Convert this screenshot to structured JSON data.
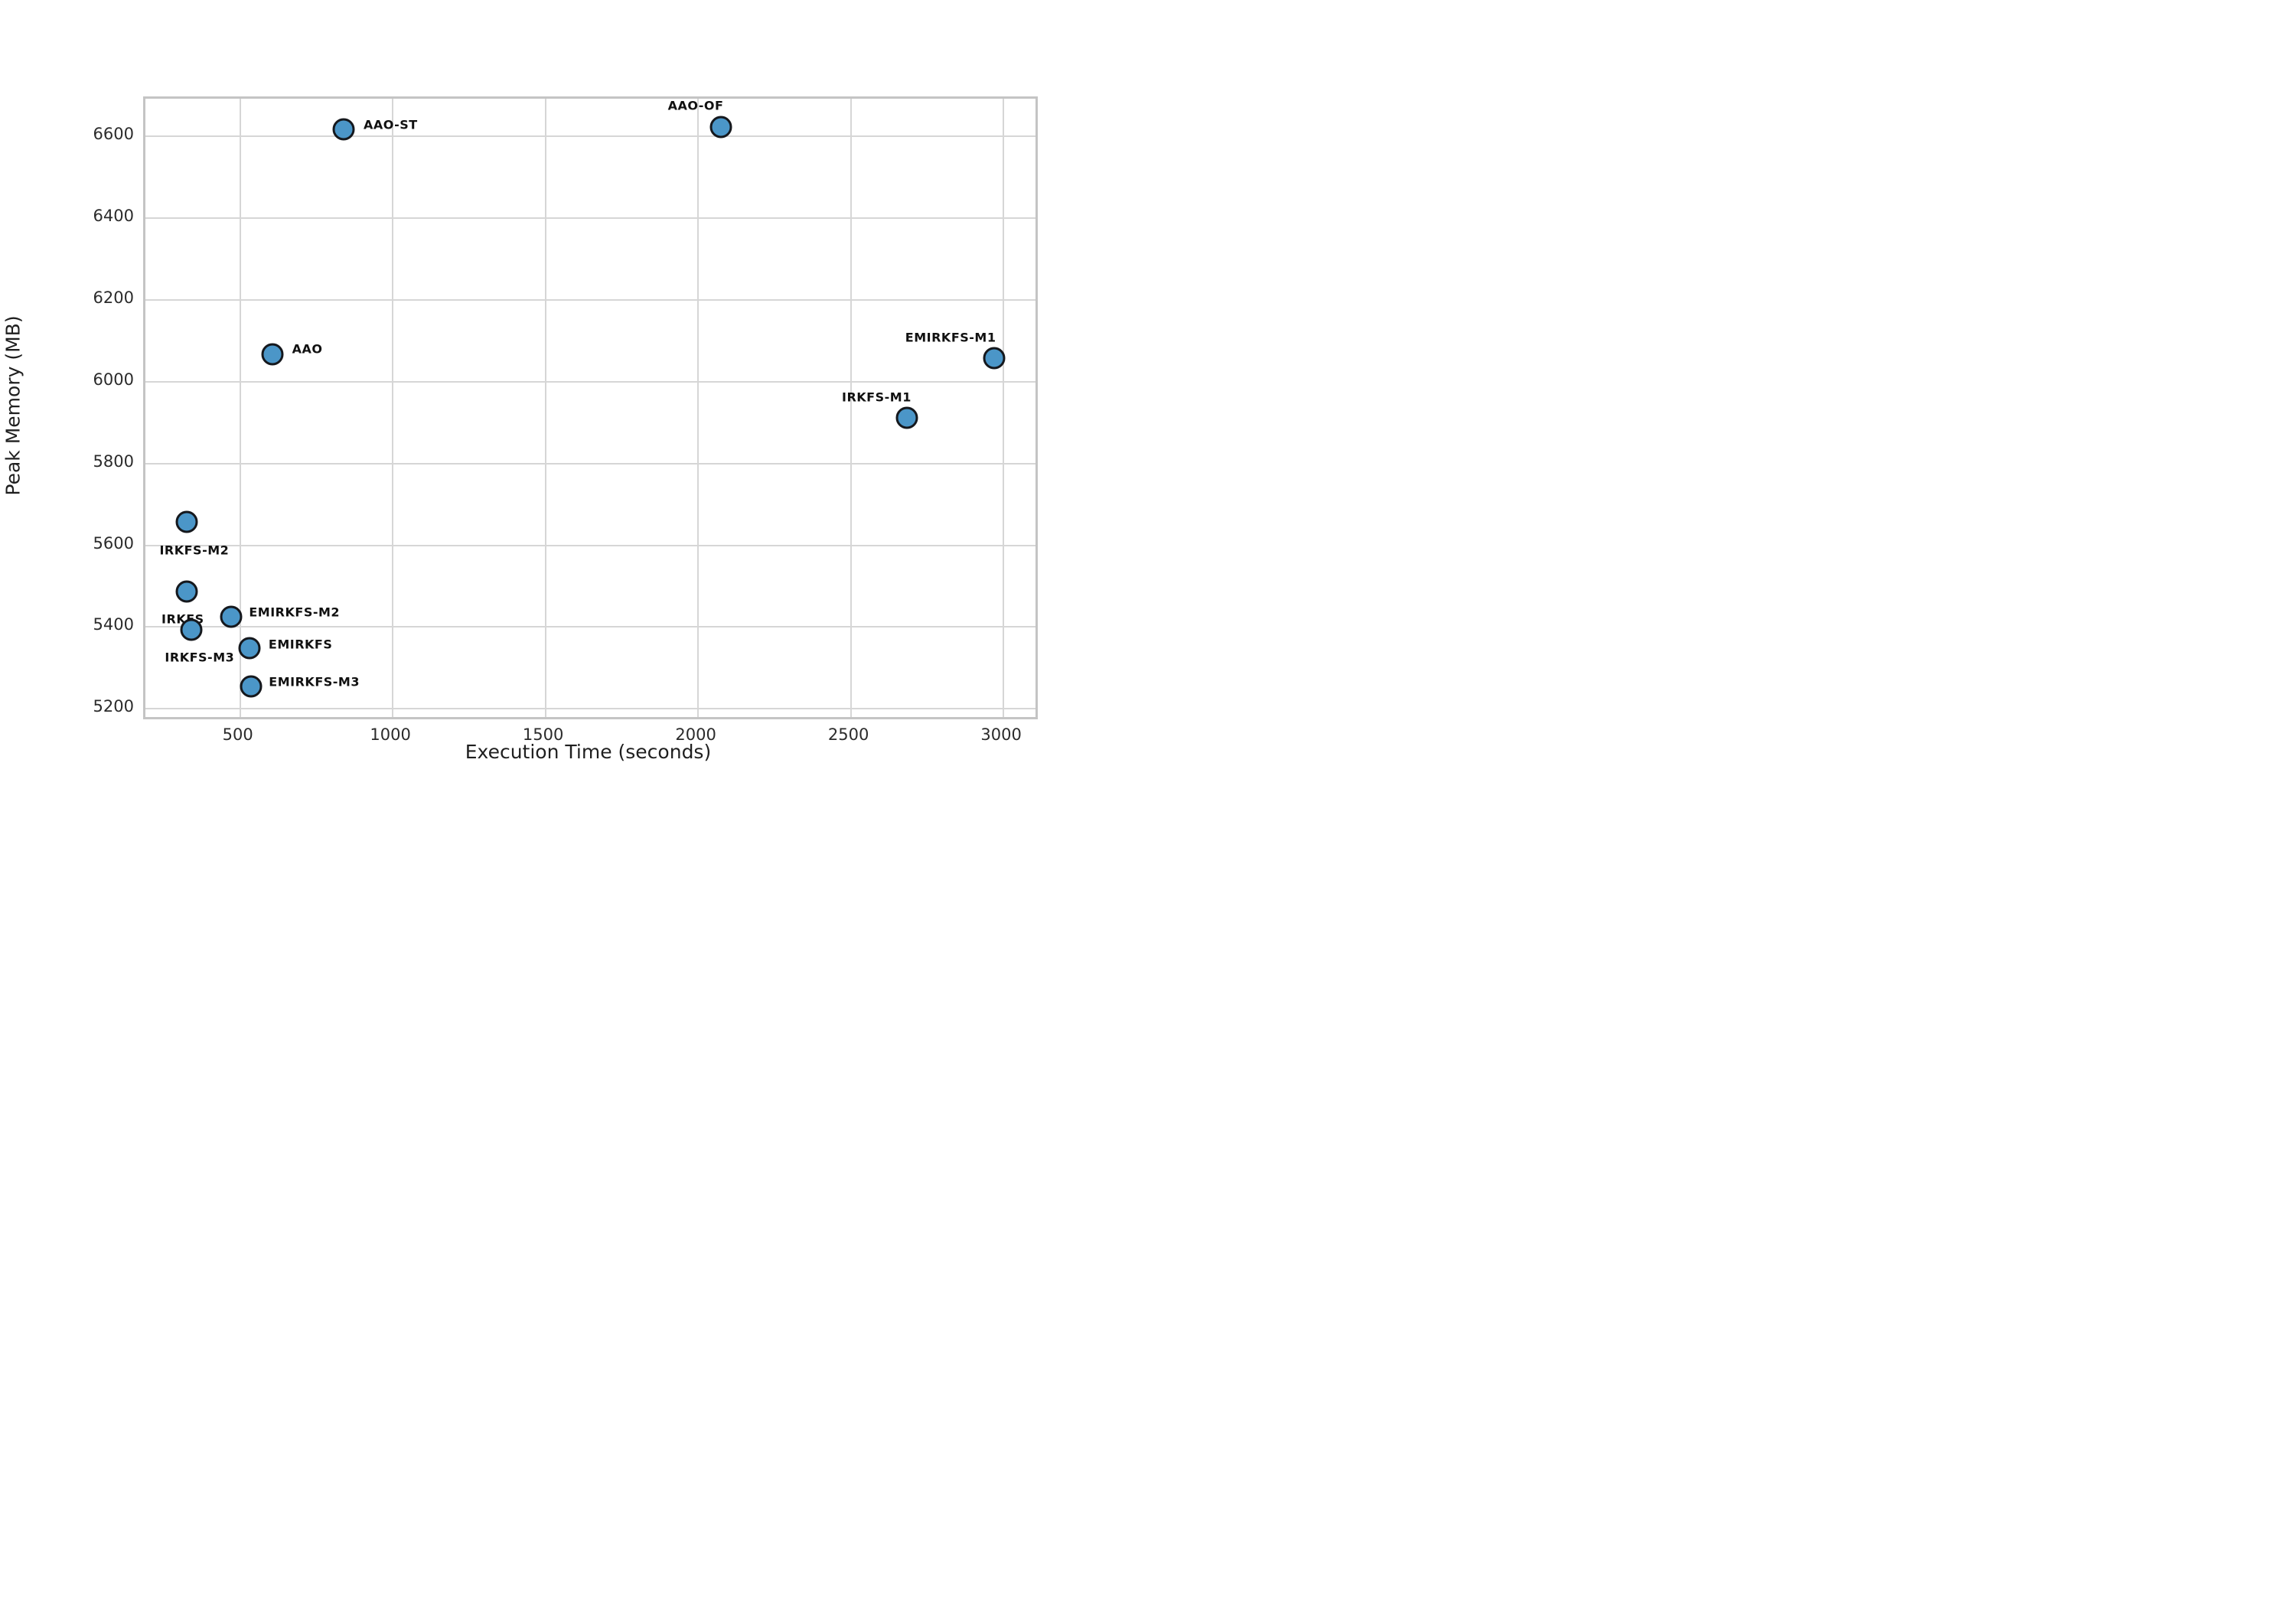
{
  "figure": {
    "xlabel": "Execution Time (seconds)",
    "ylabel": "Peak Memory (MB)"
  },
  "chart_data": {
    "type": "scatter",
    "title": "",
    "xlabel": "Execution Time (seconds)",
    "ylabel": "Peak Memory (MB)",
    "xlim": [
      190,
      3105
    ],
    "ylim": [
      5180,
      6692
    ],
    "xticks": [
      500,
      1000,
      1500,
      2000,
      2500,
      3000
    ],
    "yticks": [
      5200,
      5400,
      5600,
      5800,
      6000,
      6200,
      6400,
      6600
    ],
    "grid": true,
    "legend": false,
    "points": [
      {
        "label": "AAO-ST",
        "x": 840,
        "y": 6617,
        "label_offset": [
          61,
          -6
        ]
      },
      {
        "label": "AAO-OF",
        "x": 2075,
        "y": 6622,
        "label_offset": [
          -33,
          -28
        ]
      },
      {
        "label": "AAO",
        "x": 605,
        "y": 6067,
        "label_offset": [
          46,
          -7
        ]
      },
      {
        "label": "EMIRKFS-M1",
        "x": 2970,
        "y": 6058,
        "label_offset": [
          -57,
          -27
        ]
      },
      {
        "label": "IRKFS-M1",
        "x": 2685,
        "y": 5911,
        "label_offset": [
          -40,
          -27
        ]
      },
      {
        "label": "IRKFS-M2",
        "x": 325,
        "y": 5658,
        "label_offset": [
          10,
          37
        ]
      },
      {
        "label": "IRKFS",
        "x": 325,
        "y": 5487,
        "label_offset": [
          -5,
          36
        ]
      },
      {
        "label": "EMIRKFS-M2",
        "x": 470,
        "y": 5425,
        "label_offset": [
          83,
          -6
        ]
      },
      {
        "label": "IRKFS-M3",
        "x": 340,
        "y": 5394,
        "label_offset": [
          11,
          36
        ]
      },
      {
        "label": "EMIRKFS",
        "x": 530,
        "y": 5348,
        "label_offset": [
          67,
          -5
        ]
      },
      {
        "label": "EMIRKFS-M3",
        "x": 535,
        "y": 5255,
        "label_offset": [
          83,
          -6
        ]
      }
    ]
  },
  "colors": {
    "marker_fill": "#4B96C8",
    "marker_edge": "#15181D",
    "grid": "#D6D6D6",
    "spine": "#C4C4C4",
    "tick_text": "#2B2B2B",
    "axis_label_text": "#1F1F1F",
    "annotation_text": "#111111",
    "background": "#FFFFFF"
  }
}
